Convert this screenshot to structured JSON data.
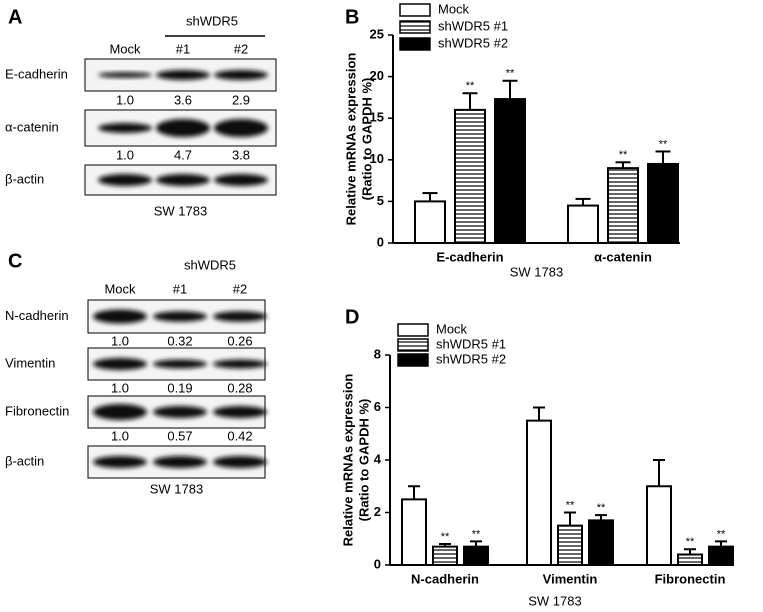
{
  "blots": [
    {
      "label": "A",
      "group": "shWDR5",
      "lanes": [
        "Mock",
        "#1",
        "#2"
      ],
      "rows": [
        {
          "name": "E-cadherin",
          "quant": [
            "1.0",
            "3.6",
            "2.9"
          ]
        },
        {
          "name": "α-catenin",
          "quant": [
            "1.0",
            "4.7",
            "3.8"
          ]
        },
        {
          "name": "β-actin"
        }
      ],
      "caption": "SW 1783"
    },
    {
      "label": "C",
      "group": "shWDR5",
      "lanes": [
        "Mock",
        "#1",
        "#2"
      ],
      "rows": [
        {
          "name": "N-cadherin",
          "quant": [
            "1.0",
            "0.32",
            "0.26"
          ]
        },
        {
          "name": "Vimentin",
          "quant": [
            "1.0",
            "0.19",
            "0.28"
          ]
        },
        {
          "name": "Fibronectin",
          "quant": [
            "1.0",
            "0.57",
            "0.42"
          ]
        },
        {
          "name": "β-actin"
        }
      ],
      "caption": "SW 1783"
    }
  ],
  "chart_data": [
    {
      "type": "bar",
      "label": "B",
      "ylabel": [
        "Relative  mRNAs expression",
        "(Ratio to  GAPDH %)"
      ],
      "xlabel": "SW 1783",
      "categories": [
        "E-cadherin",
        "α-catenin"
      ],
      "series": [
        {
          "name": "Mock",
          "color": "#ffffff",
          "values": [
            5,
            4.5
          ],
          "errors": [
            1.0,
            0.8
          ]
        },
        {
          "name": "shWDR5 #1",
          "color": "#ffffff",
          "pattern": "horizontal-lines",
          "values": [
            16,
            9
          ],
          "errors": [
            2.0,
            0.7
          ],
          "significance": [
            "**",
            "**"
          ]
        },
        {
          "name": "shWDR5 #2",
          "color": "#000000",
          "values": [
            17.3,
            9.5
          ],
          "errors": [
            2.2,
            1.5
          ],
          "significance": [
            "**",
            "**"
          ]
        }
      ],
      "ylim": [
        0,
        25
      ],
      "yticks": [
        0,
        5,
        10,
        15,
        20,
        25
      ],
      "legend": "top-left"
    },
    {
      "type": "bar",
      "label": "D",
      "ylabel": [
        "Relative  mRNAs expression",
        "(Ratio to  GAPDH %)"
      ],
      "xlabel": "SW 1783",
      "categories": [
        "N-cadherin",
        "Vimentin",
        "Fibronectin"
      ],
      "series": [
        {
          "name": "Mock",
          "color": "#ffffff",
          "values": [
            2.5,
            5.5,
            3.0
          ],
          "errors": [
            0.5,
            0.5,
            1.0
          ]
        },
        {
          "name": "shWDR5 #1",
          "color": "#ffffff",
          "pattern": "horizontal-lines",
          "values": [
            0.7,
            1.5,
            0.4
          ],
          "errors": [
            0.1,
            0.5,
            0.2
          ],
          "significance": [
            "**",
            "**",
            "**"
          ]
        },
        {
          "name": "shWDR5 #2",
          "color": "#000000",
          "values": [
            0.7,
            1.7,
            0.7
          ],
          "errors": [
            0.2,
            0.2,
            0.2
          ],
          "significance": [
            "**",
            "**",
            "**"
          ]
        }
      ],
      "ylim": [
        0,
        8
      ],
      "yticks": [
        0,
        2,
        4,
        6,
        8
      ],
      "legend": "top-left"
    }
  ]
}
